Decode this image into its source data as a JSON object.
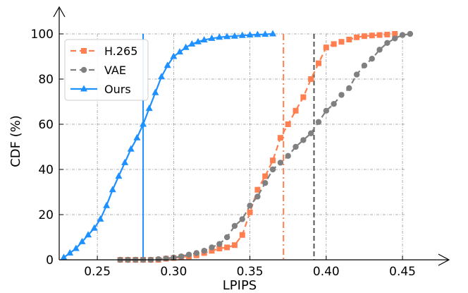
{
  "chart_data": {
    "type": "line",
    "xlabel": "LPIPS",
    "ylabel": "CDF (%)",
    "xlim": [
      0.225,
      0.48
    ],
    "ylim": [
      0,
      100
    ],
    "xticks": [
      "0.25",
      "0.30",
      "0.35",
      "0.40",
      "0.45"
    ],
    "xtick_values": [
      0.25,
      0.3,
      0.35,
      0.4,
      0.45
    ],
    "yticks": [
      "0",
      "20",
      "40",
      "60",
      "80",
      "100"
    ],
    "ytick_values": [
      0,
      20,
      40,
      60,
      80,
      100
    ],
    "grid": true,
    "legend_position": "top-left",
    "series": [
      {
        "name": "H.265",
        "color": "#FF7F50",
        "marker": "square",
        "linestyle": "dashed",
        "points": [
          [
            0.265,
            0
          ],
          [
            0.27,
            0
          ],
          [
            0.275,
            0
          ],
          [
            0.28,
            0
          ],
          [
            0.285,
            0
          ],
          [
            0.29,
            0
          ],
          [
            0.295,
            0.5
          ],
          [
            0.3,
            0.8
          ],
          [
            0.305,
            1.2
          ],
          [
            0.31,
            1.5
          ],
          [
            0.315,
            2
          ],
          [
            0.32,
            3
          ],
          [
            0.325,
            4
          ],
          [
            0.33,
            5
          ],
          [
            0.335,
            5.5
          ],
          [
            0.34,
            6.5
          ],
          [
            0.345,
            11
          ],
          [
            0.35,
            21
          ],
          [
            0.355,
            31
          ],
          [
            0.36,
            37
          ],
          [
            0.365,
            44
          ],
          [
            0.37,
            54
          ],
          [
            0.375,
            60
          ],
          [
            0.38,
            66
          ],
          [
            0.385,
            72
          ],
          [
            0.39,
            80
          ],
          [
            0.395,
            87
          ],
          [
            0.4,
            94
          ],
          [
            0.405,
            95.5
          ],
          [
            0.41,
            96.5
          ],
          [
            0.415,
            97.5
          ],
          [
            0.42,
            98.5
          ],
          [
            0.425,
            99
          ],
          [
            0.43,
            99.3
          ],
          [
            0.435,
            99.5
          ],
          [
            0.44,
            99.7
          ],
          [
            0.445,
            100
          ]
        ]
      },
      {
        "name": "VAE",
        "color": "#808080",
        "marker": "circle",
        "linestyle": "dashed",
        "points": [
          [
            0.265,
            0
          ],
          [
            0.27,
            0
          ],
          [
            0.275,
            0
          ],
          [
            0.28,
            0
          ],
          [
            0.285,
            0
          ],
          [
            0.29,
            0.3
          ],
          [
            0.295,
            0.6
          ],
          [
            0.3,
            1
          ],
          [
            0.305,
            1.5
          ],
          [
            0.31,
            2.3
          ],
          [
            0.315,
            3
          ],
          [
            0.32,
            4
          ],
          [
            0.325,
            5.5
          ],
          [
            0.33,
            7
          ],
          [
            0.335,
            10
          ],
          [
            0.34,
            15
          ],
          [
            0.345,
            18
          ],
          [
            0.35,
            24
          ],
          [
            0.355,
            28
          ],
          [
            0.36,
            34
          ],
          [
            0.365,
            40
          ],
          [
            0.37,
            43
          ],
          [
            0.375,
            46
          ],
          [
            0.38,
            50
          ],
          [
            0.385,
            53
          ],
          [
            0.39,
            56
          ],
          [
            0.395,
            61
          ],
          [
            0.4,
            66
          ],
          [
            0.405,
            69
          ],
          [
            0.41,
            73
          ],
          [
            0.415,
            76
          ],
          [
            0.42,
            82
          ],
          [
            0.425,
            86
          ],
          [
            0.43,
            89
          ],
          [
            0.435,
            93
          ],
          [
            0.44,
            96
          ],
          [
            0.445,
            98
          ],
          [
            0.45,
            99.5
          ],
          [
            0.455,
            100
          ]
        ]
      },
      {
        "name": "Ours",
        "color": "#1E90FF",
        "marker": "triangle",
        "linestyle": "solid",
        "points": [
          [
            0.228,
            1
          ],
          [
            0.232,
            3
          ],
          [
            0.236,
            5
          ],
          [
            0.24,
            8
          ],
          [
            0.244,
            11
          ],
          [
            0.248,
            14
          ],
          [
            0.252,
            18
          ],
          [
            0.256,
            24
          ],
          [
            0.26,
            31
          ],
          [
            0.264,
            37
          ],
          [
            0.268,
            43
          ],
          [
            0.272,
            49
          ],
          [
            0.276,
            54
          ],
          [
            0.28,
            60
          ],
          [
            0.284,
            67
          ],
          [
            0.288,
            74
          ],
          [
            0.292,
            81
          ],
          [
            0.296,
            86
          ],
          [
            0.3,
            90
          ],
          [
            0.304,
            92
          ],
          [
            0.308,
            94
          ],
          [
            0.312,
            95.5
          ],
          [
            0.316,
            96.5
          ],
          [
            0.32,
            97.3
          ],
          [
            0.325,
            98
          ],
          [
            0.33,
            98.5
          ],
          [
            0.335,
            98.8
          ],
          [
            0.34,
            99
          ],
          [
            0.345,
            99.3
          ],
          [
            0.35,
            99.5
          ],
          [
            0.355,
            99.7
          ],
          [
            0.36,
            99.8
          ],
          [
            0.365,
            100
          ]
        ]
      }
    ],
    "vlines": [
      {
        "x": 0.28,
        "color": "#1E90FF",
        "style": "solid"
      },
      {
        "x": 0.372,
        "color": "#FF7F50",
        "style": "dashdot"
      },
      {
        "x": 0.392,
        "color": "#555555",
        "style": "dashed"
      }
    ]
  }
}
